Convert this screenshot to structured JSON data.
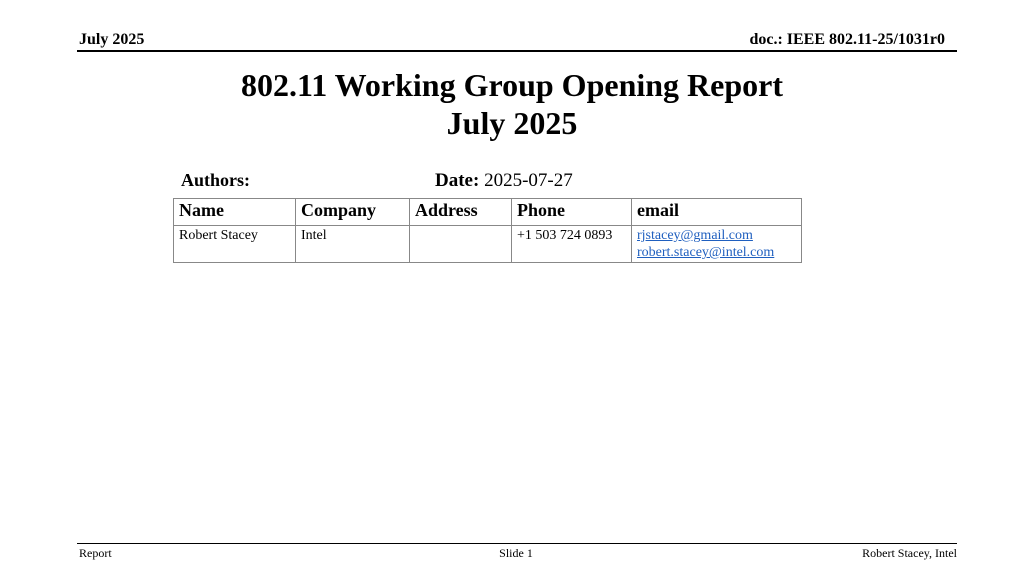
{
  "header": {
    "date": "July 2025",
    "doc": "doc.: IEEE 802.11-25/1031r0"
  },
  "title": {
    "line1": "802.11 Working Group Opening Report",
    "line2": "July 2025"
  },
  "authors_label": "Authors:",
  "date": {
    "label": "Date:",
    "value": "2025-07-27"
  },
  "table": {
    "headers": [
      "Name",
      "Company",
      "Address",
      "Phone",
      "email"
    ],
    "rows": [
      {
        "name": "Robert Stacey",
        "company": "Intel",
        "address": "",
        "phone": "+1 503 724 0893",
        "emails": [
          "rjstacey@gmail.com",
          "robert.stacey@intel.com"
        ]
      }
    ]
  },
  "footer": {
    "left": "Report",
    "center": "Slide 1",
    "right": "Robert Stacey, Intel"
  },
  "colors": {
    "link": "#1f5fbf"
  }
}
